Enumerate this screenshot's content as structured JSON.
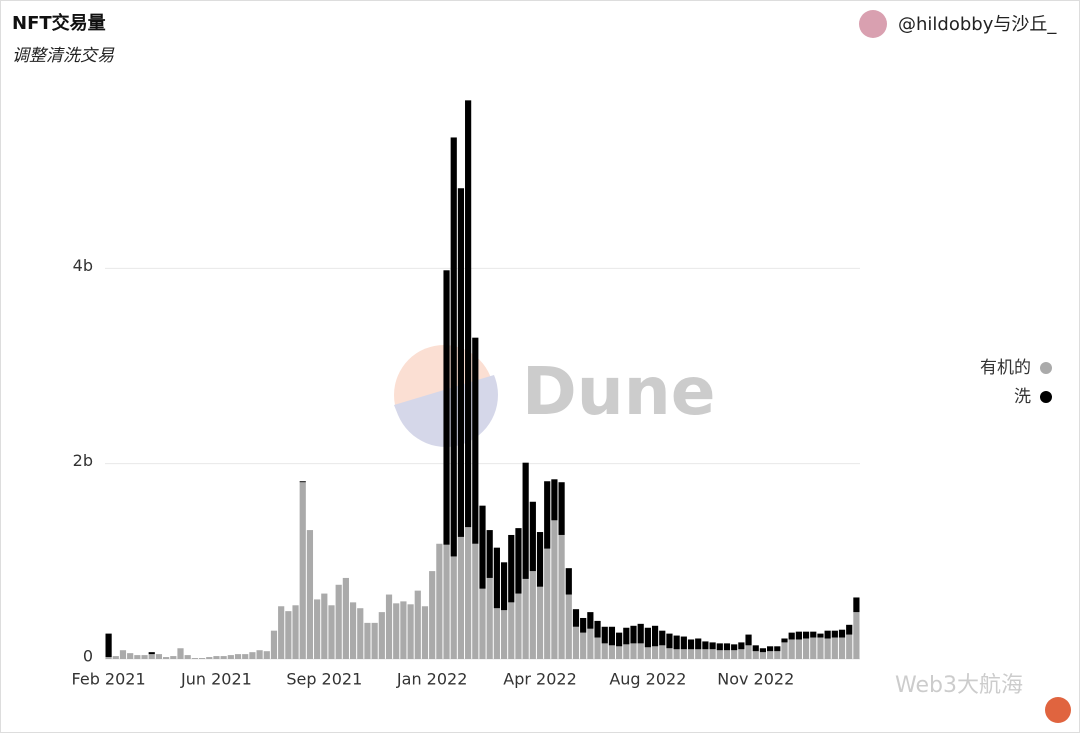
{
  "chart_data": {
    "type": "stacked_bar",
    "title": "NFT交易量",
    "subtitle": "调整清洗交易",
    "author": "@hildobby与沙丘_",
    "watermark": "Dune",
    "source_watermark": "Web3大航海",
    "categories": [
      "Feb 2021",
      null,
      null,
      null,
      null,
      null,
      null,
      null,
      null,
      null,
      null,
      null,
      null,
      null,
      null,
      "Jun 2021",
      null,
      null,
      null,
      null,
      null,
      null,
      null,
      null,
      null,
      null,
      null,
      null,
      null,
      null,
      "Sep 2021",
      null,
      null,
      null,
      null,
      null,
      null,
      null,
      null,
      null,
      null,
      null,
      null,
      null,
      null,
      "Jan 2022",
      null,
      null,
      null,
      null,
      null,
      null,
      null,
      null,
      null,
      null,
      null,
      null,
      null,
      null,
      "Apr 2022",
      null,
      null,
      null,
      null,
      null,
      null,
      null,
      null,
      null,
      null,
      null,
      null,
      null,
      null,
      "Aug 2022",
      null,
      null,
      null,
      null,
      null,
      null,
      null,
      null,
      null,
      null,
      null,
      null,
      null,
      null,
      "Nov 2022",
      null,
      null,
      null,
      null,
      null,
      null,
      null,
      null,
      null,
      null,
      null,
      null,
      null,
      null
    ],
    "series": [
      {
        "name": "有机的",
        "color": "#aaaaaa",
        "values": [
          0.02,
          0.03,
          0.09,
          0.06,
          0.04,
          0.04,
          0.05,
          0.05,
          0.02,
          0.03,
          0.11,
          0.04,
          0.01,
          0.01,
          0.02,
          0.03,
          0.03,
          0.04,
          0.05,
          0.05,
          0.07,
          0.09,
          0.08,
          0.29,
          0.54,
          0.49,
          0.55,
          1.81,
          1.32,
          0.61,
          0.67,
          0.55,
          0.76,
          0.83,
          0.58,
          0.52,
          0.37,
          0.37,
          0.48,
          0.66,
          0.57,
          0.59,
          0.56,
          0.7,
          0.54,
          0.9,
          1.18,
          1.17,
          1.05,
          1.25,
          1.35,
          1.18,
          0.72,
          0.83,
          0.52,
          0.5,
          0.58,
          0.67,
          0.82,
          0.9,
          0.74,
          1.13,
          1.42,
          1.27,
          0.66,
          0.33,
          0.27,
          0.31,
          0.22,
          0.16,
          0.14,
          0.13,
          0.15,
          0.16,
          0.16,
          0.12,
          0.13,
          0.14,
          0.11,
          0.1,
          0.1,
          0.1,
          0.1,
          0.1,
          0.1,
          0.09,
          0.09,
          0.09,
          0.1,
          0.14,
          0.08,
          0.07,
          0.08,
          0.08,
          0.17,
          0.2,
          0.2,
          0.21,
          0.22,
          0.22,
          0.21,
          0.22,
          0.22,
          0.25,
          0.48
        ]
      },
      {
        "name": "洗",
        "color": "#000000",
        "values": [
          0.24,
          0,
          0,
          0,
          0,
          0,
          0.02,
          0,
          0,
          0,
          0,
          0,
          0,
          0,
          0,
          0,
          0,
          0,
          0,
          0,
          0,
          0,
          0,
          0,
          0,
          0,
          0,
          0.01,
          0,
          0,
          0,
          0,
          0,
          0,
          0,
          0,
          0,
          0,
          0,
          0,
          0,
          0,
          0,
          0,
          0,
          0,
          0,
          2.81,
          4.29,
          3.57,
          4.37,
          2.11,
          0.85,
          0.49,
          0.62,
          0.49,
          0.69,
          0.67,
          1.19,
          0.71,
          0.56,
          0.69,
          0.42,
          0.54,
          0.27,
          0.18,
          0.15,
          0.17,
          0.17,
          0.17,
          0.19,
          0.14,
          0.17,
          0.18,
          0.2,
          0.2,
          0.21,
          0.15,
          0.15,
          0.14,
          0.13,
          0.1,
          0.11,
          0.08,
          0.07,
          0.07,
          0.07,
          0.06,
          0.07,
          0.11,
          0.06,
          0.04,
          0.05,
          0.05,
          0.04,
          0.07,
          0.08,
          0.07,
          0.06,
          0.04,
          0.08,
          0.07,
          0.08,
          0.1,
          0.15
        ]
      }
    ],
    "ylim": [
      0,
      6
    ],
    "yticks": [
      0,
      {
        "value": 2,
        "label": "2b"
      },
      {
        "value": 4,
        "label": "4b"
      }
    ],
    "grid": true,
    "legend": "right"
  }
}
